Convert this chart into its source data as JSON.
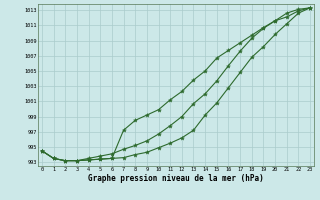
{
  "xlabel": "Graphe pression niveau de la mer (hPa)",
  "x": [
    0,
    1,
    2,
    3,
    4,
    5,
    6,
    7,
    8,
    9,
    10,
    11,
    12,
    13,
    14,
    15,
    16,
    17,
    18,
    19,
    20,
    21,
    22,
    23
  ],
  "line1": [
    994.5,
    993.5,
    993.2,
    993.2,
    993.3,
    993.4,
    993.5,
    993.6,
    994.0,
    994.3,
    994.9,
    995.5,
    996.2,
    997.2,
    999.2,
    1000.8,
    1002.8,
    1004.8,
    1006.8,
    1008.2,
    1009.8,
    1011.2,
    1012.6,
    1013.3
  ],
  "line2": [
    994.5,
    993.5,
    993.2,
    993.2,
    993.3,
    993.4,
    993.5,
    997.2,
    998.5,
    999.2,
    999.9,
    1001.2,
    1002.3,
    1003.8,
    1005.0,
    1006.7,
    1007.7,
    1008.7,
    1009.7,
    1010.7,
    1011.6,
    1012.6,
    1013.1,
    1013.3
  ],
  "line3": [
    994.5,
    993.5,
    993.2,
    993.2,
    993.5,
    993.8,
    994.1,
    994.7,
    995.2,
    995.8,
    996.7,
    997.8,
    999.0,
    1000.7,
    1002.0,
    1003.7,
    1005.7,
    1007.6,
    1009.3,
    1010.6,
    1011.6,
    1012.1,
    1012.9,
    1013.3
  ],
  "ylim_min": 992.5,
  "ylim_max": 1013.8,
  "yticks": [
    993,
    995,
    997,
    999,
    1001,
    1003,
    1005,
    1007,
    1009,
    1011,
    1013
  ],
  "line_color": "#2d6a2d",
  "bg_color": "#cce8e8",
  "grid_color": "#aacccc"
}
